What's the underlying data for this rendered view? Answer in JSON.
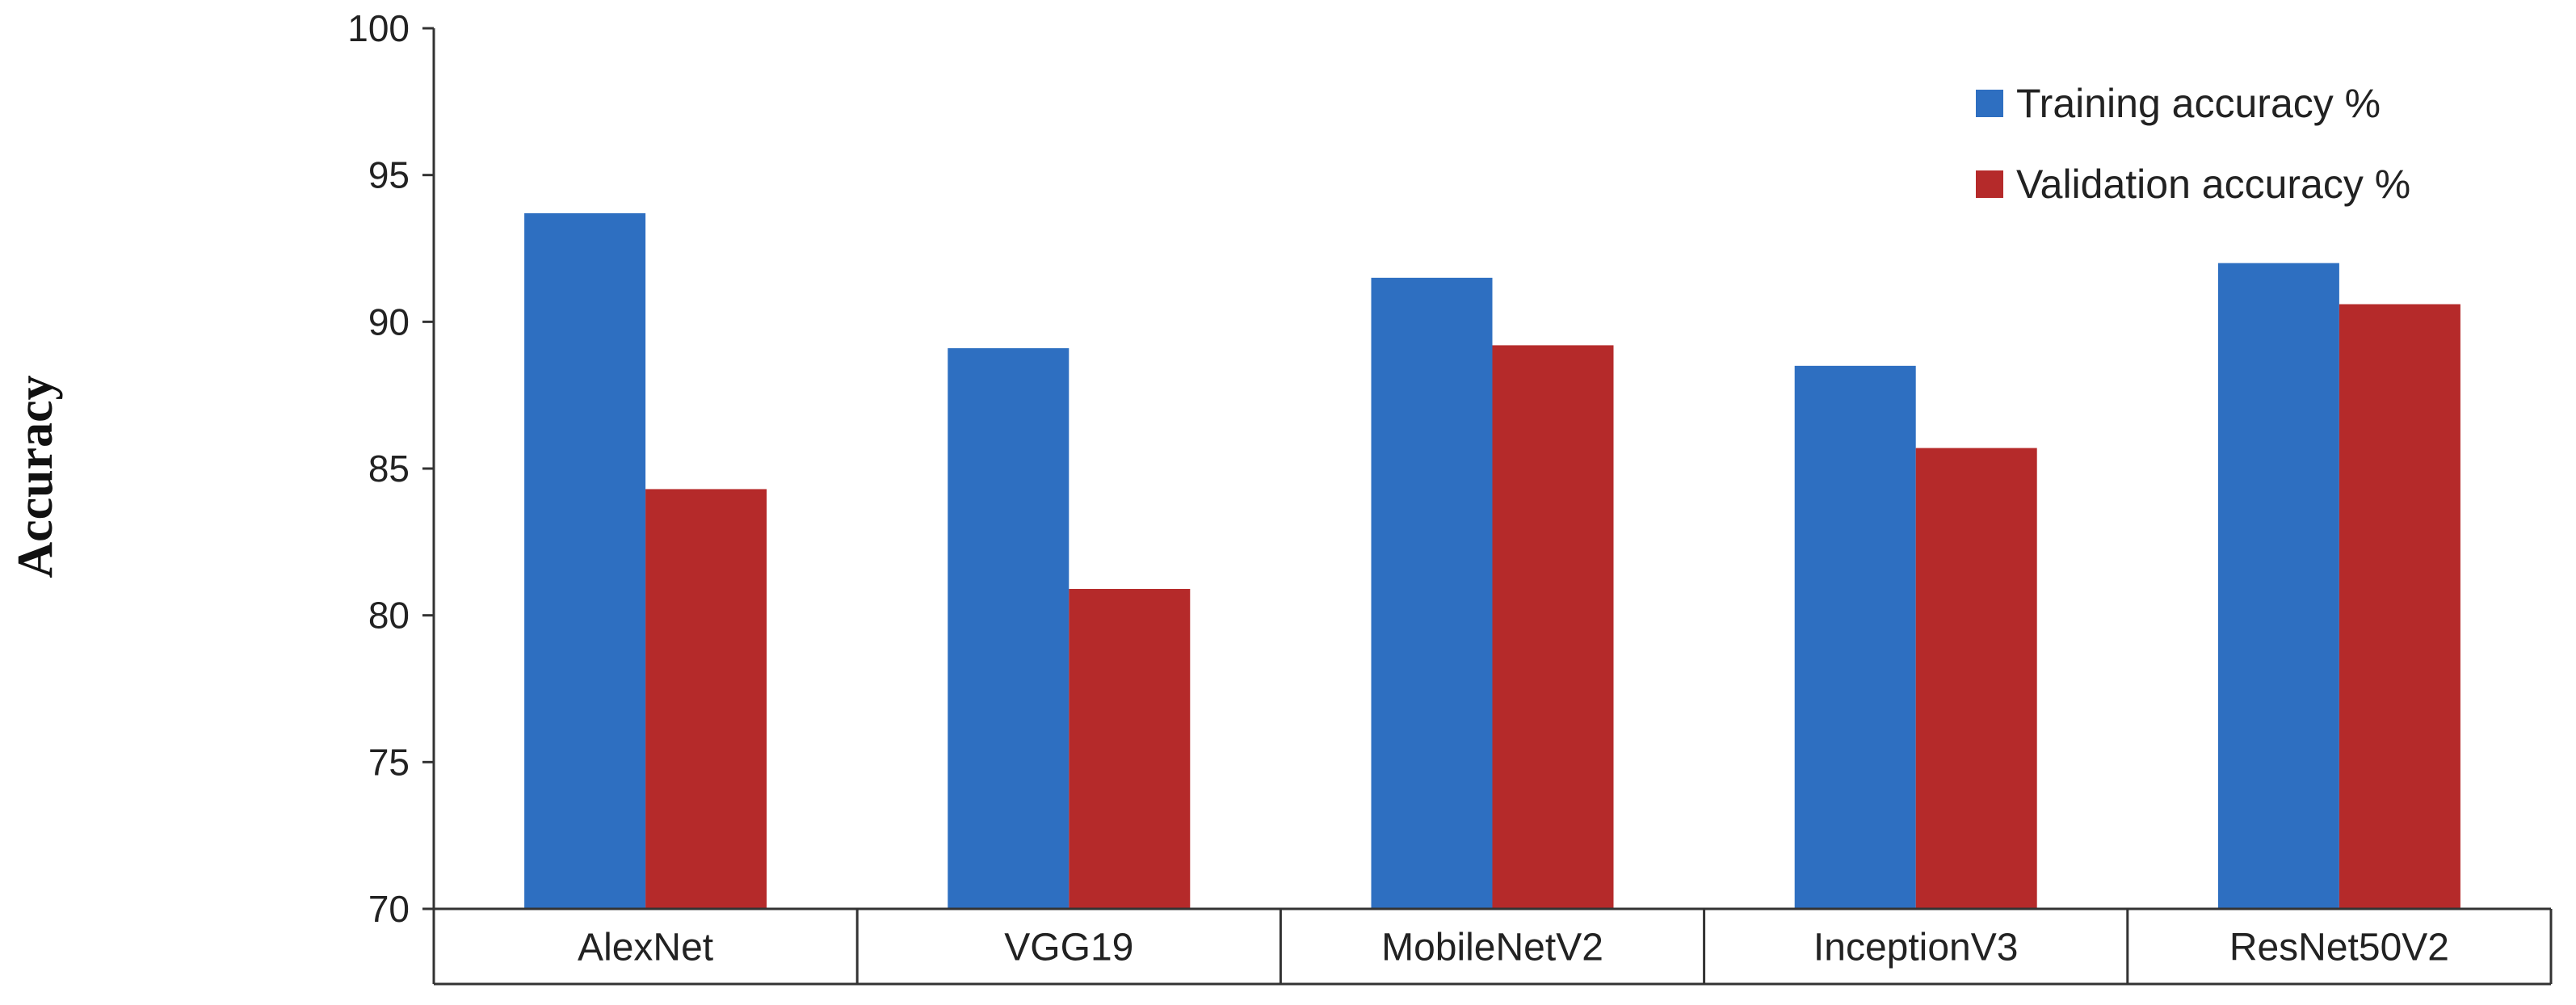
{
  "chart_data": {
    "type": "bar",
    "title": "",
    "xlabel": "",
    "ylabel": "Accuracy",
    "ylim": [
      70,
      100
    ],
    "yticks": [
      70,
      75,
      80,
      85,
      90,
      95,
      100
    ],
    "grid": false,
    "legend_position": "top-right",
    "categories": [
      "AlexNet",
      "VGG19",
      "MobileNetV2",
      "InceptionV3",
      "ResNet50V2"
    ],
    "series": [
      {
        "name": "Training accuracy %",
        "color": "#2e6fc1",
        "values": [
          93.7,
          89.1,
          91.5,
          88.5,
          92.0
        ]
      },
      {
        "name": "Validation accuracy %",
        "color": "#b52a2a",
        "values": [
          84.3,
          80.9,
          89.2,
          85.7,
          90.6
        ]
      }
    ]
  }
}
